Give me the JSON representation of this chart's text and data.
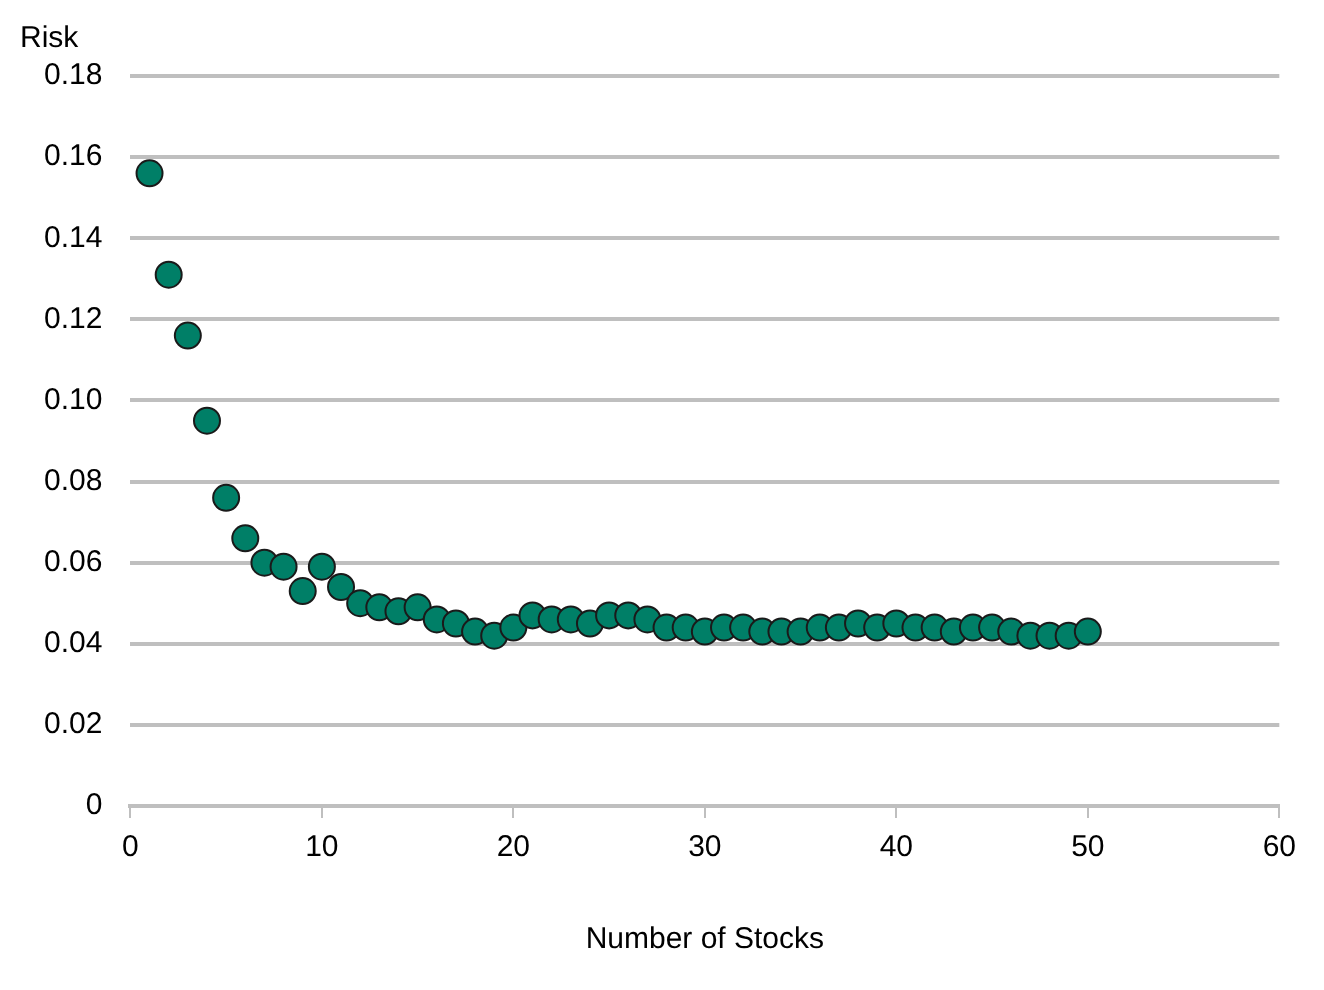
{
  "chart_data": {
    "type": "scatter",
    "xlabel": "Number of Stocks",
    "ylabel": "Risk",
    "x": [
      1,
      2,
      3,
      4,
      5,
      6,
      7,
      8,
      9,
      10,
      11,
      12,
      13,
      14,
      15,
      16,
      17,
      18,
      19,
      20,
      21,
      22,
      23,
      24,
      25,
      26,
      27,
      28,
      29,
      30,
      31,
      32,
      33,
      34,
      35,
      36,
      37,
      38,
      39,
      40,
      41,
      42,
      43,
      44,
      45,
      46,
      47,
      48,
      49,
      50
    ],
    "series": [
      {
        "color": "#007f67",
        "values": [
          0.156,
          0.131,
          0.116,
          0.095,
          0.076,
          0.066,
          0.06,
          0.059,
          0.053,
          0.059,
          0.054,
          0.05,
          0.049,
          0.048,
          0.049,
          0.046,
          0.045,
          0.043,
          0.042,
          0.044,
          0.047,
          0.046,
          0.046,
          0.045,
          0.047,
          0.047,
          0.046,
          0.044,
          0.044,
          0.043,
          0.044,
          0.044,
          0.043,
          0.043,
          0.043,
          0.044,
          0.044,
          0.045,
          0.044,
          0.045,
          0.044,
          0.044,
          0.043,
          0.044,
          0.044,
          0.043,
          0.042,
          0.042,
          0.042,
          0.043
        ]
      }
    ],
    "xlim": [
      0,
      60
    ],
    "xticks": [
      0,
      10,
      20,
      30,
      40,
      50,
      60
    ],
    "ylim": [
      0,
      0.18
    ],
    "yticks": [
      0,
      0.02,
      0.04,
      0.06,
      0.08,
      {
        "value": 0.1,
        "label": "0.10"
      },
      0.12,
      0.14,
      0.16,
      0.18
    ],
    "grid": "y",
    "legend": false,
    "marker": "circle"
  }
}
